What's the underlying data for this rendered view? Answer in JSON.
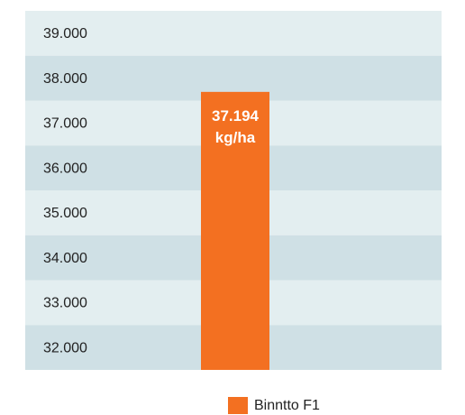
{
  "chart_data": {
    "type": "bar",
    "categories": [
      null
    ],
    "series": [
      {
        "name": "Binntto F1",
        "color": "#f37021",
        "values": [
          37194
        ],
        "value_labels": [
          "37.194 kg/ha"
        ]
      }
    ],
    "ylim": [
      31000,
      39000
    ],
    "yticks": [
      {
        "value": 39000,
        "label": "39.000"
      },
      {
        "value": 38000,
        "label": "38.000"
      },
      {
        "value": 37000,
        "label": "37.000"
      },
      {
        "value": 36000,
        "label": "36.000"
      },
      {
        "value": 35000,
        "label": "35.000"
      },
      {
        "value": 34000,
        "label": "34.000"
      },
      {
        "value": 33000,
        "label": "33.000"
      },
      {
        "value": 32000,
        "label": "32.000"
      }
    ],
    "band_colors": [
      "#e3eef0",
      "#cfe0e5"
    ],
    "legend": "bottom"
  }
}
